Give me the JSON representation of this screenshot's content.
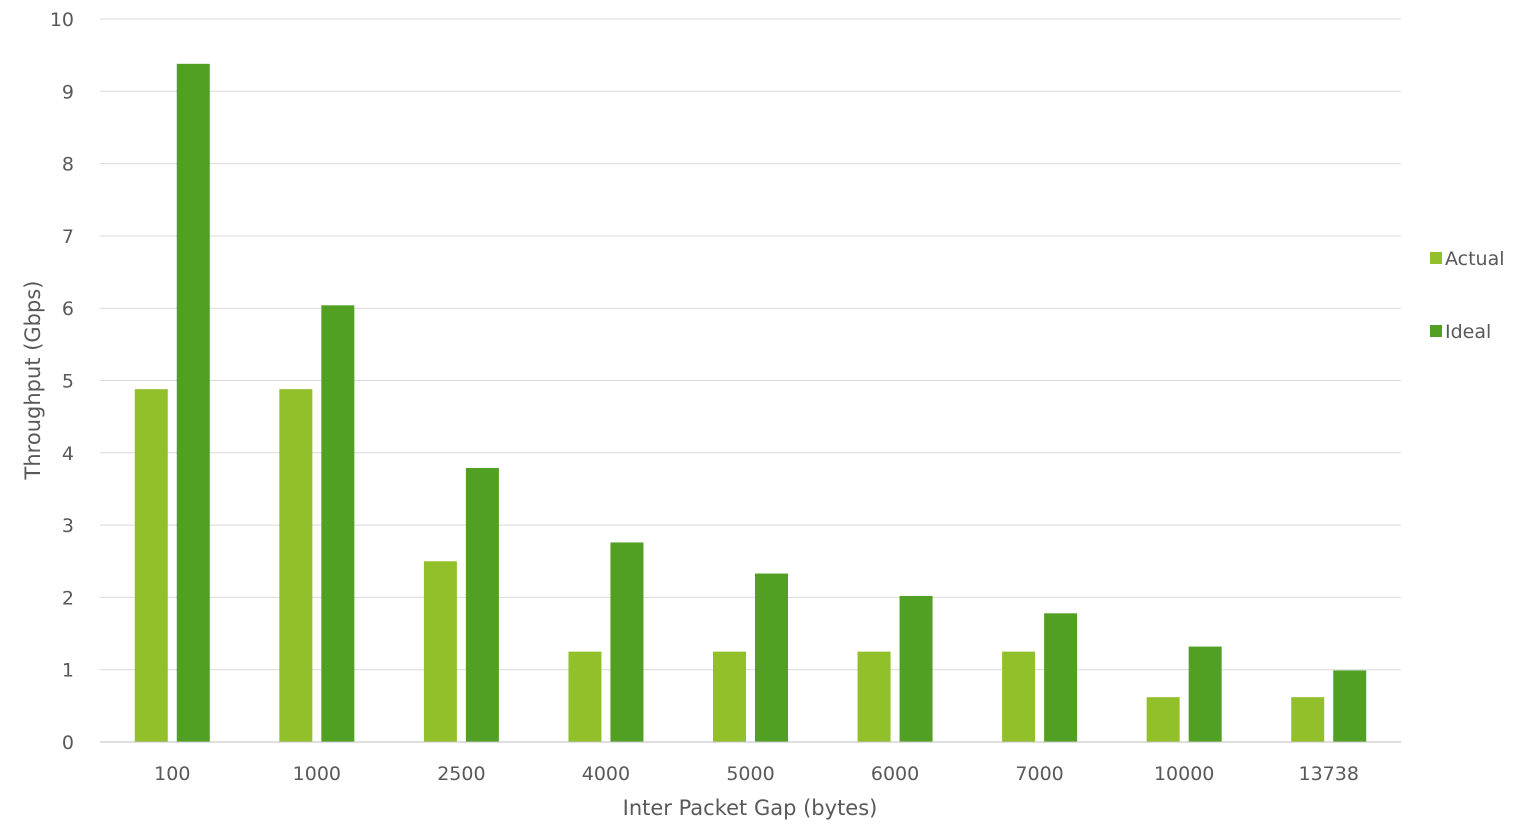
{
  "chart_data": {
    "type": "bar",
    "xlabel": "Inter Packet Gap (bytes)",
    "ylabel": "Throughput (Gbps)",
    "ylim": [
      0,
      10
    ],
    "yticks": [
      0,
      1,
      2,
      3,
      4,
      5,
      6,
      7,
      8,
      9,
      10
    ],
    "grid": true,
    "legend_position": "right",
    "categories": [
      "100",
      "1000",
      "2500",
      "4000",
      "5000",
      "6000",
      "7000",
      "10000",
      "13738"
    ],
    "series": [
      {
        "name": "Actual",
        "color": "#92c02a",
        "values": [
          4.88,
          4.88,
          2.5,
          1.25,
          1.25,
          1.25,
          1.25,
          0.62,
          0.62
        ]
      },
      {
        "name": "Ideal",
        "color": "#52a023",
        "values": [
          9.38,
          6.04,
          3.79,
          2.76,
          2.33,
          2.02,
          1.78,
          1.32,
          0.99
        ]
      }
    ]
  }
}
